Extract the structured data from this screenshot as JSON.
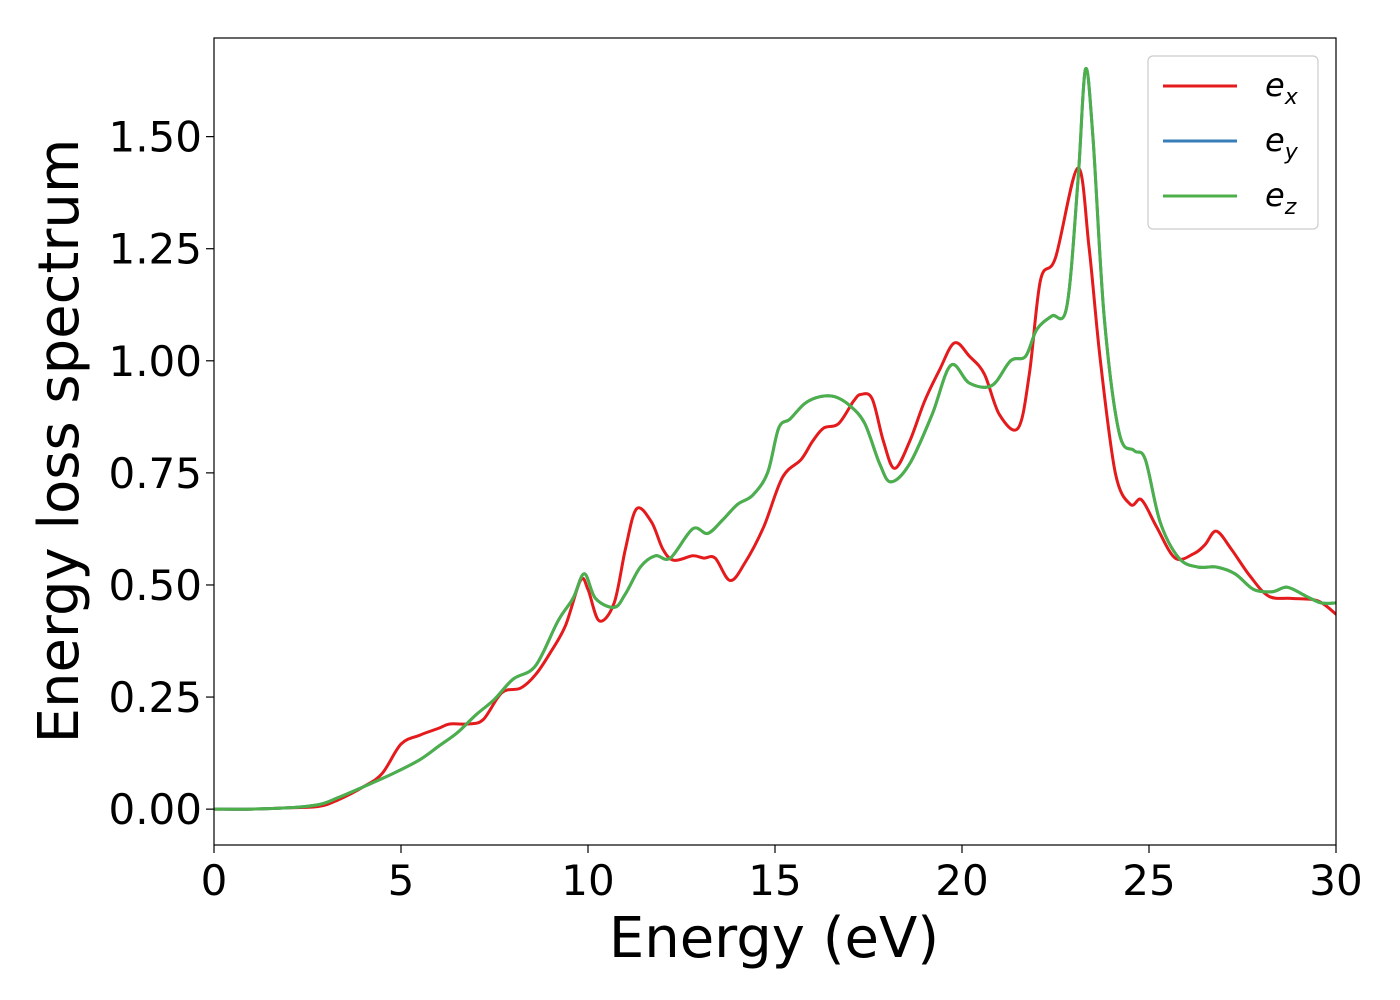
{
  "chart_data": {
    "type": "line",
    "title": "",
    "xlabel": "Energy (eV)",
    "ylabel": "Energy loss spectrum",
    "xlim": [
      0,
      30
    ],
    "ylim": [
      -0.08,
      1.72
    ],
    "x_ticks": [
      0,
      5,
      10,
      15,
      20,
      25,
      30
    ],
    "x_tick_labels": [
      "0",
      "5",
      "10",
      "15",
      "20",
      "25",
      "30"
    ],
    "y_ticks": [
      0.0,
      0.25,
      0.5,
      0.75,
      1.0,
      1.25,
      1.5
    ],
    "y_tick_labels": [
      "0.00",
      "0.25",
      "0.50",
      "0.75",
      "1.00",
      "1.25",
      "1.50"
    ],
    "grid": false,
    "legend_position": "top-right",
    "series": [
      {
        "name": "e_x",
        "label_base": "e",
        "label_sub": "x",
        "color": "#e41a1c",
        "points": [
          [
            0,
            0
          ],
          [
            1,
            0
          ],
          [
            2,
            0.003
          ],
          [
            2.8,
            0.006
          ],
          [
            3.3,
            0.02
          ],
          [
            4,
            0.05
          ],
          [
            4.5,
            0.08
          ],
          [
            5,
            0.145
          ],
          [
            5.5,
            0.165
          ],
          [
            6,
            0.18
          ],
          [
            6.3,
            0.19
          ],
          [
            6.8,
            0.19
          ],
          [
            7.2,
            0.2
          ],
          [
            7.7,
            0.26
          ],
          [
            8.2,
            0.27
          ],
          [
            8.6,
            0.3
          ],
          [
            9,
            0.35
          ],
          [
            9.4,
            0.41
          ],
          [
            9.8,
            0.51
          ],
          [
            10,
            0.49
          ],
          [
            10.3,
            0.42
          ],
          [
            10.7,
            0.46
          ],
          [
            11,
            0.58
          ],
          [
            11.3,
            0.67
          ],
          [
            11.7,
            0.64
          ],
          [
            12,
            0.58
          ],
          [
            12.3,
            0.555
          ],
          [
            12.8,
            0.565
          ],
          [
            13.1,
            0.56
          ],
          [
            13.4,
            0.56
          ],
          [
            13.8,
            0.51
          ],
          [
            14.2,
            0.55
          ],
          [
            14.7,
            0.63
          ],
          [
            15.2,
            0.74
          ],
          [
            15.7,
            0.78
          ],
          [
            16,
            0.82
          ],
          [
            16.3,
            0.85
          ],
          [
            16.7,
            0.86
          ],
          [
            17.1,
            0.91
          ],
          [
            17.3,
            0.925
          ],
          [
            17.6,
            0.915
          ],
          [
            17.9,
            0.82
          ],
          [
            18.2,
            0.76
          ],
          [
            18.6,
            0.82
          ],
          [
            19,
            0.91
          ],
          [
            19.4,
            0.98
          ],
          [
            19.8,
            1.04
          ],
          [
            20.2,
            1.01
          ],
          [
            20.6,
            0.97
          ],
          [
            21,
            0.88
          ],
          [
            21.5,
            0.85
          ],
          [
            21.8,
            0.97
          ],
          [
            22.1,
            1.18
          ],
          [
            22.5,
            1.23
          ],
          [
            23.1,
            1.43
          ],
          [
            23.4,
            1.25
          ],
          [
            23.7,
            1.0
          ],
          [
            24.1,
            0.75
          ],
          [
            24.5,
            0.68
          ],
          [
            24.8,
            0.69
          ],
          [
            25.2,
            0.63
          ],
          [
            25.7,
            0.56
          ],
          [
            26.2,
            0.57
          ],
          [
            26.5,
            0.59
          ],
          [
            26.8,
            0.62
          ],
          [
            27.2,
            0.58
          ],
          [
            27.7,
            0.52
          ],
          [
            28.2,
            0.475
          ],
          [
            28.8,
            0.47
          ],
          [
            29.5,
            0.465
          ],
          [
            30,
            0.435
          ]
        ]
      },
      {
        "name": "e_y",
        "label_base": "e",
        "label_sub": "y",
        "color": "#377eb8",
        "points": [
          [
            0,
            0
          ],
          [
            1,
            0
          ],
          [
            2,
            0.003
          ],
          [
            2.8,
            0.01
          ],
          [
            3.3,
            0.025
          ],
          [
            4,
            0.05
          ],
          [
            4.8,
            0.08
          ],
          [
            5.5,
            0.11
          ],
          [
            6,
            0.14
          ],
          [
            6.5,
            0.17
          ],
          [
            7,
            0.21
          ],
          [
            7.5,
            0.245
          ],
          [
            8,
            0.29
          ],
          [
            8.6,
            0.32
          ],
          [
            9.2,
            0.42
          ],
          [
            9.6,
            0.47
          ],
          [
            9.9,
            0.525
          ],
          [
            10.2,
            0.47
          ],
          [
            10.7,
            0.45
          ],
          [
            11,
            0.48
          ],
          [
            11.4,
            0.54
          ],
          [
            11.8,
            0.565
          ],
          [
            12.2,
            0.56
          ],
          [
            12.8,
            0.625
          ],
          [
            13.2,
            0.615
          ],
          [
            13.6,
            0.645
          ],
          [
            14,
            0.68
          ],
          [
            14.4,
            0.7
          ],
          [
            14.8,
            0.75
          ],
          [
            15.1,
            0.85
          ],
          [
            15.4,
            0.87
          ],
          [
            15.8,
            0.905
          ],
          [
            16.2,
            0.92
          ],
          [
            16.6,
            0.92
          ],
          [
            17,
            0.9
          ],
          [
            17.4,
            0.86
          ],
          [
            17.8,
            0.77
          ],
          [
            18.1,
            0.73
          ],
          [
            18.6,
            0.77
          ],
          [
            19.2,
            0.88
          ],
          [
            19.7,
            0.99
          ],
          [
            20.2,
            0.95
          ],
          [
            20.8,
            0.945
          ],
          [
            21.3,
            1.0
          ],
          [
            21.7,
            1.01
          ],
          [
            22,
            1.07
          ],
          [
            22.4,
            1.1
          ],
          [
            22.8,
            1.12
          ],
          [
            23.1,
            1.4
          ],
          [
            23.3,
            1.65
          ],
          [
            23.5,
            1.5
          ],
          [
            23.8,
            1.1
          ],
          [
            24.2,
            0.84
          ],
          [
            24.6,
            0.8
          ],
          [
            24.9,
            0.78
          ],
          [
            25.3,
            0.64
          ],
          [
            25.8,
            0.56
          ],
          [
            26.3,
            0.54
          ],
          [
            26.8,
            0.54
          ],
          [
            27.3,
            0.525
          ],
          [
            27.8,
            0.49
          ],
          [
            28.3,
            0.485
          ],
          [
            28.7,
            0.495
          ],
          [
            29.2,
            0.475
          ],
          [
            29.6,
            0.46
          ],
          [
            30,
            0.46
          ]
        ]
      },
      {
        "name": "e_z",
        "label_base": "e",
        "label_sub": "z",
        "color": "#4daf4a",
        "points": [
          [
            0,
            0
          ],
          [
            1,
            0
          ],
          [
            2,
            0.003
          ],
          [
            2.8,
            0.01
          ],
          [
            3.3,
            0.025
          ],
          [
            4,
            0.05
          ],
          [
            4.8,
            0.08
          ],
          [
            5.5,
            0.11
          ],
          [
            6,
            0.14
          ],
          [
            6.5,
            0.17
          ],
          [
            7,
            0.21
          ],
          [
            7.5,
            0.245
          ],
          [
            8,
            0.29
          ],
          [
            8.6,
            0.32
          ],
          [
            9.2,
            0.42
          ],
          [
            9.6,
            0.47
          ],
          [
            9.9,
            0.525
          ],
          [
            10.2,
            0.47
          ],
          [
            10.7,
            0.45
          ],
          [
            11,
            0.48
          ],
          [
            11.4,
            0.54
          ],
          [
            11.8,
            0.565
          ],
          [
            12.2,
            0.56
          ],
          [
            12.8,
            0.625
          ],
          [
            13.2,
            0.615
          ],
          [
            13.6,
            0.645
          ],
          [
            14,
            0.68
          ],
          [
            14.4,
            0.7
          ],
          [
            14.8,
            0.75
          ],
          [
            15.1,
            0.85
          ],
          [
            15.4,
            0.87
          ],
          [
            15.8,
            0.905
          ],
          [
            16.2,
            0.92
          ],
          [
            16.6,
            0.92
          ],
          [
            17,
            0.9
          ],
          [
            17.4,
            0.86
          ],
          [
            17.8,
            0.77
          ],
          [
            18.1,
            0.73
          ],
          [
            18.6,
            0.77
          ],
          [
            19.2,
            0.88
          ],
          [
            19.7,
            0.99
          ],
          [
            20.2,
            0.95
          ],
          [
            20.8,
            0.945
          ],
          [
            21.3,
            1.0
          ],
          [
            21.7,
            1.01
          ],
          [
            22,
            1.07
          ],
          [
            22.4,
            1.1
          ],
          [
            22.8,
            1.12
          ],
          [
            23.1,
            1.4
          ],
          [
            23.3,
            1.65
          ],
          [
            23.5,
            1.5
          ],
          [
            23.8,
            1.1
          ],
          [
            24.2,
            0.84
          ],
          [
            24.6,
            0.8
          ],
          [
            24.9,
            0.78
          ],
          [
            25.3,
            0.64
          ],
          [
            25.8,
            0.56
          ],
          [
            26.3,
            0.54
          ],
          [
            26.8,
            0.54
          ],
          [
            27.3,
            0.525
          ],
          [
            27.8,
            0.49
          ],
          [
            28.3,
            0.485
          ],
          [
            28.7,
            0.495
          ],
          [
            29.2,
            0.475
          ],
          [
            29.6,
            0.46
          ],
          [
            30,
            0.46
          ]
        ]
      }
    ]
  }
}
